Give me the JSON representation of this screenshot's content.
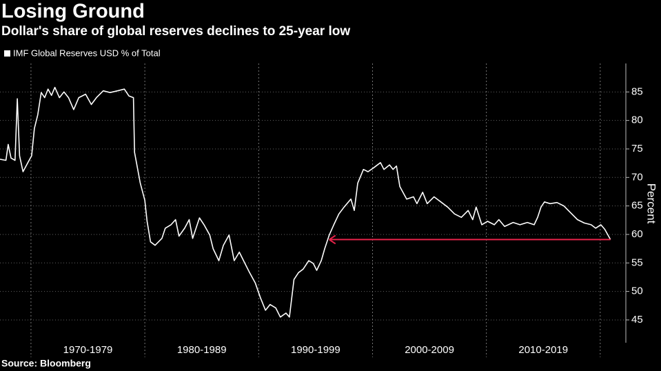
{
  "chart_data": {
    "type": "line",
    "title": "Losing Ground",
    "subtitle": "Dollar's share of global reserves declines to 25-year low",
    "source": "Source: Bloomberg",
    "y_label": "Percent",
    "x": [
      1967.28,
      1967.8,
      1968.0,
      1968.25,
      1968.6,
      1968.8,
      1969.0,
      1969.3,
      1969.7,
      1970.06,
      1970.3,
      1970.6,
      1970.9,
      1971.2,
      1971.5,
      1971.8,
      1972.1,
      1972.5,
      1972.9,
      1973.3,
      1973.75,
      1974.2,
      1974.8,
      1975.3,
      1975.75,
      1976.35,
      1976.95,
      1977.6,
      1978.2,
      1978.6,
      1979.0,
      1979.1,
      1979.6,
      1980.0,
      1980.2,
      1980.5,
      1980.9,
      1981.5,
      1981.8,
      1982.3,
      1982.7,
      1983.0,
      1983.5,
      1983.9,
      1984.2,
      1984.8,
      1985.2,
      1985.7,
      1986.0,
      1986.5,
      1986.9,
      1987.4,
      1987.85,
      1988.3,
      1988.75,
      1989.2,
      1989.7,
      1990.15,
      1990.6,
      1991.0,
      1991.5,
      1991.9,
      1992.4,
      1992.7,
      1993.1,
      1993.5,
      1993.9,
      1994.4,
      1994.8,
      1995.1,
      1995.5,
      1995.8,
      1996.2,
      1996.6,
      1997.05,
      1997.5,
      1998.1,
      1998.4,
      1998.7,
      1999.2,
      1999.6,
      2000.1,
      2000.7,
      2001.0,
      2001.5,
      2001.8,
      2002.1,
      2002.4,
      2003.0,
      2003.6,
      2003.9,
      2004.4,
      2004.8,
      2005.4,
      2006.0,
      2006.6,
      2007.2,
      2007.8,
      2008.4,
      2008.8,
      2009.1,
      2009.6,
      2010.1,
      2010.7,
      2011.1,
      2011.6,
      2012.35,
      2012.95,
      2013.6,
      2014.2,
      2014.5,
      2014.8,
      2015.1,
      2015.6,
      2016.2,
      2016.8,
      2017.4,
      2018.0,
      2018.6,
      2019.2,
      2019.6,
      2020.05,
      2020.4,
      2020.9
    ],
    "series": [
      {
        "name": "IMF Global Reserves USD % of Total",
        "color": "#ffffff",
        "values": [
          73.2,
          73,
          75.8,
          73.4,
          73,
          83.8,
          73.8,
          71,
          72.5,
          73.8,
          78.6,
          81,
          84.9,
          84,
          85.5,
          84.4,
          85.8,
          84,
          85,
          84,
          81.9,
          84,
          84.6,
          82.8,
          84,
          85.2,
          84.9,
          85.2,
          85.5,
          84.3,
          84,
          74.4,
          69,
          66,
          62.3,
          58.7,
          58.1,
          59.3,
          61.1,
          61.7,
          62.6,
          59.7,
          61.1,
          62.6,
          59.3,
          62.9,
          61.7,
          59.9,
          57.5,
          55.4,
          58.1,
          59.9,
          55.4,
          56.9,
          55.1,
          53.3,
          51.5,
          48.9,
          46.7,
          47.7,
          47.1,
          45.5,
          46.2,
          45.5,
          52.1,
          53.3,
          53.9,
          55.4,
          54.9,
          53.7,
          55.4,
          57.5,
          59.9,
          61.7,
          63.6,
          64.8,
          66.2,
          64.2,
          69,
          71.4,
          71,
          71.7,
          72.6,
          71.4,
          72.2,
          71.4,
          72,
          68.4,
          66.2,
          66.6,
          65.4,
          67.4,
          65.4,
          66.6,
          65.7,
          64.8,
          63.6,
          63,
          64.2,
          62.6,
          64.8,
          61.7,
          62.3,
          61.7,
          62.6,
          61.4,
          62.1,
          61.7,
          62.1,
          61.7,
          63,
          64.8,
          65.7,
          65.4,
          65.6,
          65,
          63.8,
          62.6,
          62,
          61.7,
          61.1,
          61.7,
          60.9,
          59.1
        ]
      }
    ],
    "arrow": {
      "x_from": 2020.9,
      "x_to": 1996.2,
      "y": 59.1,
      "color": "#e8234a"
    },
    "xlim": [
      1967.28,
      2022.25
    ],
    "ylim": [
      41,
      90
    ],
    "yticks": [
      45,
      50,
      55,
      60,
      65,
      70,
      75,
      80,
      85
    ],
    "xticks": [
      {
        "value": 1975,
        "label": "1970-1979"
      },
      {
        "value": 1985,
        "label": "1980-1989"
      },
      {
        "value": 1995,
        "label": "1990-1999"
      },
      {
        "value": 2005,
        "label": "2000-2009"
      },
      {
        "value": 2015,
        "label": "2010-2019"
      }
    ],
    "x_dividers": [
      1970,
      1980,
      1990,
      2000,
      2010,
      2020
    ],
    "grid": true
  }
}
